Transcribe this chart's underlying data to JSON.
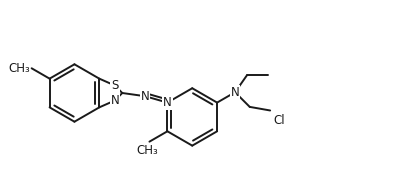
{
  "background": "#ffffff",
  "line_color": "#1a1a1a",
  "line_width": 1.4,
  "font_size": 8.5,
  "figsize": [
    4.2,
    1.86
  ],
  "dpi": 100,
  "xlim": [
    0,
    10.5
  ],
  "ylim": [
    0,
    4.4
  ]
}
